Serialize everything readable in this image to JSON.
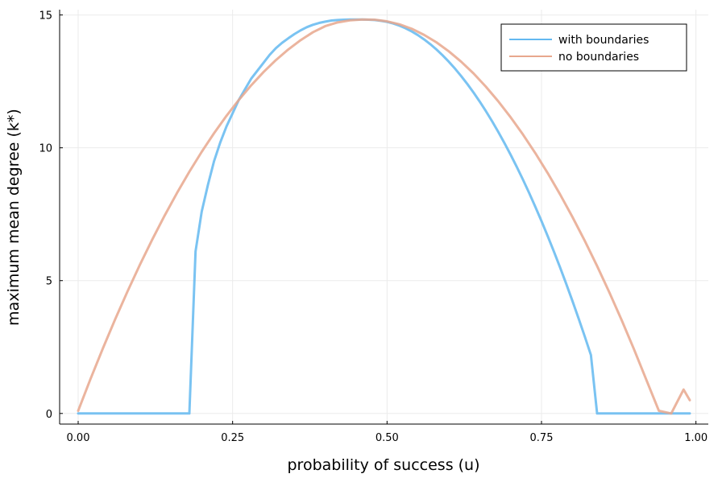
{
  "chart_data": {
    "type": "line",
    "title": "",
    "xlabel": "probability of success (u)",
    "ylabel": "maximum mean degree (k*)",
    "xlim": [
      -0.03,
      1.02
    ],
    "ylim": [
      -0.4,
      15.2
    ],
    "xticks": [
      0.0,
      0.25,
      0.5,
      0.75,
      1.0
    ],
    "xtick_labels": [
      "0.00",
      "0.25",
      "0.50",
      "0.75",
      "1.00"
    ],
    "yticks": [
      0,
      5,
      10,
      15
    ],
    "ytick_labels": [
      "0",
      "5",
      "10",
      "15"
    ],
    "grid": true,
    "legend_position": "top-right",
    "series": [
      {
        "name": "with boundaries",
        "color": "#63b8f0",
        "x": [
          0.0,
          0.18,
          0.18,
          0.19,
          0.2,
          0.21,
          0.22,
          0.23,
          0.24,
          0.25,
          0.26,
          0.27,
          0.28,
          0.29,
          0.3,
          0.31,
          0.32,
          0.33,
          0.34,
          0.35,
          0.36,
          0.37,
          0.38,
          0.39,
          0.4,
          0.41,
          0.42,
          0.43,
          0.44,
          0.45,
          0.46,
          0.47,
          0.48,
          0.49,
          0.5,
          0.51,
          0.52,
          0.53,
          0.54,
          0.55,
          0.56,
          0.57,
          0.58,
          0.59,
          0.6,
          0.61,
          0.62,
          0.63,
          0.64,
          0.65,
          0.66,
          0.67,
          0.68,
          0.69,
          0.7,
          0.71,
          0.72,
          0.73,
          0.74,
          0.75,
          0.76,
          0.77,
          0.78,
          0.79,
          0.8,
          0.81,
          0.82,
          0.83,
          0.84,
          0.85,
          0.86,
          0.87,
          0.88,
          0.89,
          0.9,
          0.91,
          0.92,
          0.93,
          0.94,
          0.95,
          0.96,
          0.97,
          0.98,
          0.99
        ],
        "y": [
          0.0,
          0.0,
          0.0,
          6.1,
          7.6,
          8.6,
          9.5,
          10.2,
          10.8,
          11.3,
          11.8,
          12.2,
          12.6,
          12.9,
          13.2,
          13.5,
          13.75,
          13.95,
          14.12,
          14.28,
          14.42,
          14.54,
          14.63,
          14.7,
          14.75,
          14.79,
          14.81,
          14.82,
          14.83,
          14.83,
          14.83,
          14.82,
          14.81,
          14.78,
          14.74,
          14.68,
          14.6,
          14.5,
          14.38,
          14.24,
          14.08,
          13.9,
          13.7,
          13.48,
          13.24,
          12.98,
          12.7,
          12.4,
          12.08,
          11.74,
          11.38,
          11.0,
          10.6,
          10.18,
          9.74,
          9.28,
          8.8,
          8.3,
          7.78,
          7.24,
          6.68,
          6.1,
          5.5,
          4.88,
          4.24,
          3.58,
          2.9,
          2.2,
          0.0,
          0.0,
          0.0,
          0.0,
          0.0,
          0.0,
          0.0,
          0.0,
          0.0,
          0.0,
          0.0,
          0.0,
          0.0,
          0.0,
          0.0,
          0.0
        ]
      },
      {
        "name": "no boundaries",
        "color": "#e8a78d",
        "x": [
          0.0,
          0.02,
          0.04,
          0.06,
          0.08,
          0.1,
          0.12,
          0.14,
          0.16,
          0.18,
          0.2,
          0.22,
          0.24,
          0.26,
          0.28,
          0.3,
          0.32,
          0.34,
          0.36,
          0.38,
          0.4,
          0.42,
          0.44,
          0.46,
          0.48,
          0.5,
          0.52,
          0.54,
          0.56,
          0.58,
          0.6,
          0.62,
          0.64,
          0.66,
          0.68,
          0.7,
          0.72,
          0.74,
          0.76,
          0.78,
          0.8,
          0.82,
          0.84,
          0.86,
          0.88,
          0.9,
          0.92,
          0.94,
          0.96,
          0.98,
          0.99
        ],
        "y": [
          0.1,
          1.3,
          2.45,
          3.55,
          4.6,
          5.6,
          6.55,
          7.45,
          8.3,
          9.1,
          9.85,
          10.55,
          11.2,
          11.8,
          12.35,
          12.85,
          13.3,
          13.7,
          14.05,
          14.35,
          14.58,
          14.72,
          14.8,
          14.83,
          14.82,
          14.76,
          14.65,
          14.48,
          14.25,
          13.97,
          13.63,
          13.24,
          12.8,
          12.3,
          11.75,
          11.15,
          10.5,
          9.8,
          9.05,
          8.25,
          7.4,
          6.5,
          5.55,
          4.55,
          3.5,
          2.4,
          1.25,
          0.1,
          0.0,
          0.9,
          0.5
        ]
      }
    ]
  }
}
